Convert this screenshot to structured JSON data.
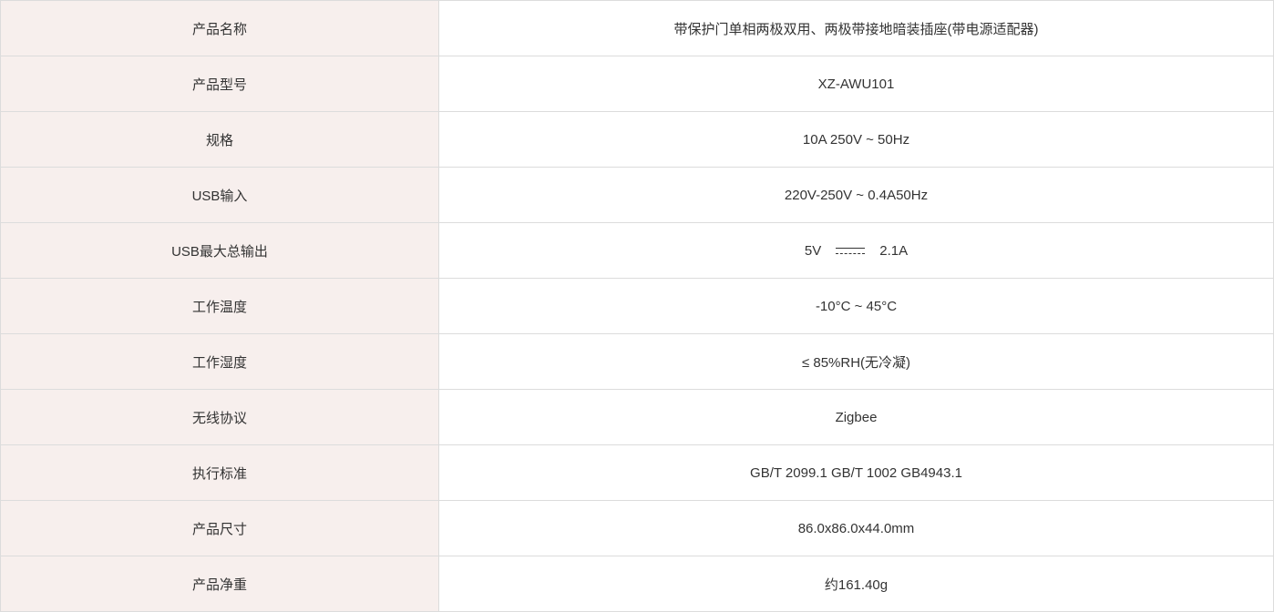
{
  "rows": [
    {
      "label": "产品名称",
      "value": "带保护门单相两极双用、两极带接地暗装插座(带电源适配器)"
    },
    {
      "label": "产品型号",
      "value": "XZ-AWU101"
    },
    {
      "label": "规格",
      "value": "10A 250V ~ 50Hz"
    },
    {
      "label": "USB输入",
      "value": "220V-250V ~ 0.4A50Hz"
    },
    {
      "label": "USB最大总输出",
      "value_voltage": "5V",
      "value_symbol": "dc-symbol-icon",
      "value_current": "2.1A"
    },
    {
      "label": "工作温度",
      "value": "-10°C ~ 45°C"
    },
    {
      "label": "工作湿度",
      "value": "≤ 85%RH(无冷凝)"
    },
    {
      "label": "无线协议",
      "value": "Zigbee"
    },
    {
      "label": "执行标准",
      "value": "GB/T 2099.1 GB/T 1002 GB4943.1"
    },
    {
      "label": "产品尺寸",
      "value": "86.0x86.0x44.0mm"
    },
    {
      "label": "产品净重",
      "value": "约161.40g"
    }
  ],
  "colors": {
    "label_bg": "#f7efed",
    "border": "#dcdcdc",
    "text": "#333333"
  }
}
